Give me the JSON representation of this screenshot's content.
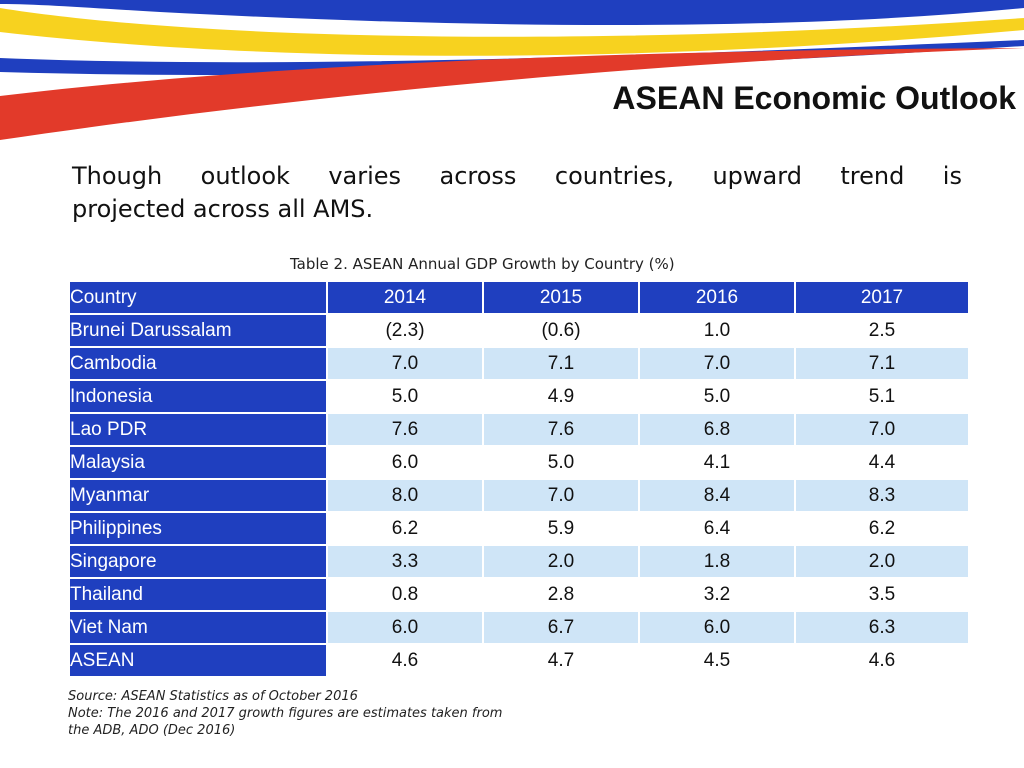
{
  "title": "ASEAN Economic Outlook",
  "subtitle": {
    "line1": [
      "Though",
      "outlook",
      "varies",
      "across",
      "countries,",
      "upward",
      "trend",
      "is"
    ],
    "line2": "projected across all AMS."
  },
  "table": {
    "caption": "Table 2. ASEAN Annual GDP Growth by Country (%)",
    "headers": [
      "Country",
      "2014",
      "2015",
      "2016",
      "2017"
    ],
    "rows": [
      {
        "country": "Brunei Darussalam",
        "values": [
          "(2.3)",
          "(0.6)",
          "1.0",
          "2.5"
        ]
      },
      {
        "country": "Cambodia",
        "values": [
          "7.0",
          "7.1",
          "7.0",
          "7.1"
        ]
      },
      {
        "country": "Indonesia",
        "values": [
          "5.0",
          "4.9",
          "5.0",
          "5.1"
        ]
      },
      {
        "country": "Lao PDR",
        "values": [
          "7.6",
          "7.6",
          "6.8",
          "7.0"
        ]
      },
      {
        "country": "Malaysia",
        "values": [
          "6.0",
          "5.0",
          "4.1",
          "4.4"
        ]
      },
      {
        "country": "Myanmar",
        "values": [
          "8.0",
          "7.0",
          "8.4",
          "8.3"
        ]
      },
      {
        "country": "Philippines",
        "values": [
          "6.2",
          "5.9",
          "6.4",
          "6.2"
        ]
      },
      {
        "country": "Singapore",
        "values": [
          "3.3",
          "2.0",
          "1.8",
          "2.0"
        ]
      },
      {
        "country": "Thailand",
        "values": [
          "0.8",
          "2.8",
          "3.2",
          "3.5"
        ]
      },
      {
        "country": "Viet Nam",
        "values": [
          "6.0",
          "6.7",
          "6.0",
          "6.3"
        ]
      },
      {
        "country": "ASEAN",
        "values": [
          "4.6",
          "4.7",
          "4.5",
          "4.6"
        ]
      }
    ]
  },
  "notes": {
    "source": "Source: ASEAN Statistics as of October 2016",
    "note_line1": "Note: The 2016 and 2017 growth figures are estimates taken from",
    "note_line2": "the ADB, ADO (Dec 2016)"
  },
  "colors": {
    "header_blue": "#1f3fbf",
    "row_stripe": "#cfe5f7",
    "swoosh_blue": "#1f3fbf",
    "swoosh_yellow": "#f7d21f",
    "swoosh_red": "#e23a2a"
  }
}
